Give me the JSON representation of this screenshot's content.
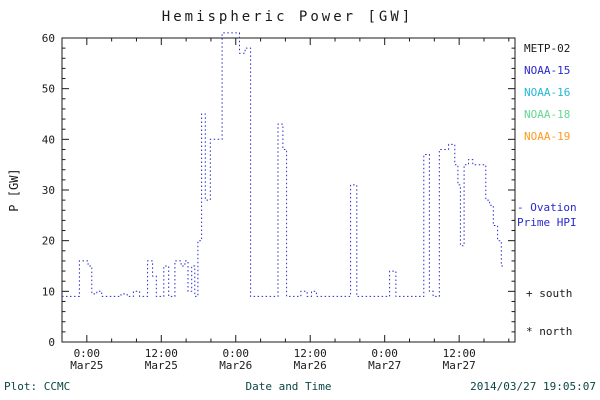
{
  "header": {
    "title": "Hemispheric Power [GW]"
  },
  "legend": {
    "satellites": [
      {
        "label": "METP-02",
        "color": "#1a1a1a"
      },
      {
        "label": "NOAA-15",
        "color": "#2929cc"
      },
      {
        "label": "NOAA-16",
        "color": "#23b6d8"
      },
      {
        "label": "NOAA-18",
        "color": "#63d98f"
      },
      {
        "label": "NOAA-19",
        "color": "#ff9a1e"
      }
    ],
    "ovation_label_line1": "- Ovation",
    "ovation_label_line2": "Prime HPI",
    "ovation_color": "#2929cc",
    "south_label": "+ south",
    "north_label": "* north"
  },
  "footer": {
    "plot_credit": "Plot: CCMC",
    "xlabel": "Date and Time",
    "timestamp": "2014/03/27 19:05:07"
  },
  "chart_data": {
    "type": "line",
    "title": "Hemispheric Power [GW]",
    "xlabel": "Date and Time",
    "ylabel": "P [GW]",
    "ylim": [
      0,
      60
    ],
    "y_ticks": [
      0,
      10,
      20,
      30,
      40,
      50,
      60
    ],
    "x_hours_range": [
      -4,
      69
    ],
    "x_ticks": [
      {
        "hour": 0,
        "time": "0:00",
        "date": "Mar25"
      },
      {
        "hour": 12,
        "time": "12:00",
        "date": "Mar25"
      },
      {
        "hour": 24,
        "time": "0:00",
        "date": "Mar26"
      },
      {
        "hour": 36,
        "time": "12:00",
        "date": "Mar26"
      },
      {
        "hour": 48,
        "time": "0:00",
        "date": "Mar27"
      },
      {
        "hour": 60,
        "time": "12:00",
        "date": "Mar27"
      }
    ],
    "grid": false,
    "legend_position": "right",
    "line_color": "#2929cc",
    "line_style": "dotted",
    "step": true,
    "series": [
      {
        "name": "Ovation Prime HPI",
        "units": "GW",
        "x_units": "hours since Mar25 00:00",
        "points": [
          [
            -4.0,
            9
          ],
          [
            -1.2,
            16
          ],
          [
            0.2,
            15
          ],
          [
            0.8,
            9.5
          ],
          [
            1.6,
            10
          ],
          [
            2.4,
            9
          ],
          [
            5.5,
            9.5
          ],
          [
            6.5,
            9
          ],
          [
            7.5,
            10
          ],
          [
            8.5,
            9
          ],
          [
            9.8,
            16
          ],
          [
            10.6,
            13
          ],
          [
            11.2,
            9
          ],
          [
            12.4,
            15
          ],
          [
            13.2,
            9
          ],
          [
            14.2,
            16
          ],
          [
            15.2,
            15
          ],
          [
            15.8,
            16
          ],
          [
            16.3,
            10
          ],
          [
            16.9,
            15
          ],
          [
            17.4,
            9
          ],
          [
            17.9,
            20
          ],
          [
            18.5,
            45
          ],
          [
            19.1,
            28
          ],
          [
            19.9,
            40
          ],
          [
            21.8,
            61
          ],
          [
            24.6,
            57
          ],
          [
            25.5,
            58
          ],
          [
            26.4,
            9
          ],
          [
            30.8,
            43
          ],
          [
            31.6,
            38
          ],
          [
            32.2,
            9
          ],
          [
            34.5,
            10
          ],
          [
            35.5,
            9
          ],
          [
            36.2,
            10
          ],
          [
            37.0,
            9
          ],
          [
            42.5,
            31
          ],
          [
            43.5,
            9
          ],
          [
            48.8,
            14
          ],
          [
            49.8,
            9
          ],
          [
            54.3,
            37
          ],
          [
            55.2,
            10
          ],
          [
            55.8,
            9
          ],
          [
            56.8,
            38
          ],
          [
            58.3,
            39
          ],
          [
            59.3,
            35
          ],
          [
            59.8,
            31
          ],
          [
            60.2,
            19
          ],
          [
            60.8,
            35
          ],
          [
            61.5,
            36
          ],
          [
            62.2,
            35
          ],
          [
            64.3,
            28
          ],
          [
            64.9,
            27
          ],
          [
            65.5,
            23
          ],
          [
            66.2,
            20
          ],
          [
            66.8,
            15
          ],
          [
            67.3,
            15
          ]
        ]
      }
    ]
  }
}
